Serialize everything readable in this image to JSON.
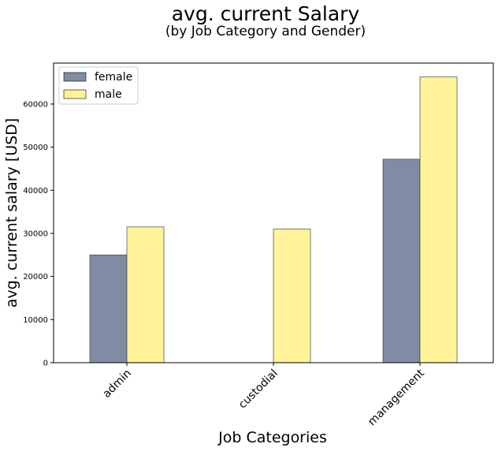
{
  "chart_data": {
    "type": "bar",
    "title": "avg. current Salary",
    "subtitle": "(by Job Category and Gender)",
    "xlabel": "Job Categories",
    "ylabel": "avg. current salary [USD]",
    "categories": [
      "admin",
      "custodial",
      "management"
    ],
    "series": [
      {
        "name": "female",
        "values": [
          25000,
          null,
          47200
        ],
        "color": "#7f8ca3"
      },
      {
        "name": "male",
        "values": [
          31500,
          31000,
          66300
        ],
        "color": "#fff298"
      }
    ],
    "ylim": [
      0,
      69500
    ],
    "yticks": [
      "0",
      "10000",
      "20000",
      "30000",
      "40000",
      "50000",
      "60000"
    ],
    "grid": false,
    "legend": "top-left"
  }
}
